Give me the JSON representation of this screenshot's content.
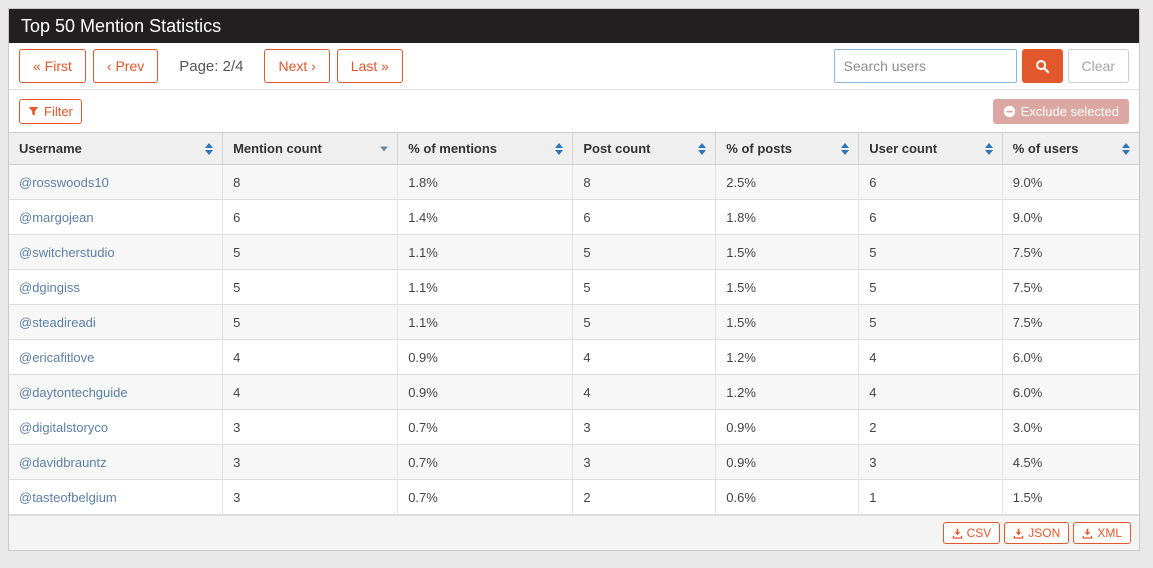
{
  "colors": {
    "accent": "#e2572b",
    "titlebar-bg": "#231f20",
    "link": "#5b7fa6",
    "sort": "#2d74b8",
    "sort-active": "#708ba3",
    "exclude-bg": "#dca7a2",
    "search-border": "#8ab6d9"
  },
  "header": {
    "title": "Top 50 Mention Statistics"
  },
  "pagination": {
    "first": "« First",
    "prev": "‹ Prev",
    "page_label": "Page: 2/4",
    "next": "Next ›",
    "last": "Last »"
  },
  "search": {
    "placeholder": "Search users",
    "value": "",
    "clear": "Clear"
  },
  "filter": {
    "label": "Filter"
  },
  "exclude": {
    "label": "Exclude selected"
  },
  "table": {
    "columns": [
      {
        "label": "Username",
        "sort": "both"
      },
      {
        "label": "Mention count",
        "sort": "desc"
      },
      {
        "label": "% of mentions",
        "sort": "both"
      },
      {
        "label": "Post count",
        "sort": "both"
      },
      {
        "label": "% of posts",
        "sort": "both"
      },
      {
        "label": "User count",
        "sort": "both"
      },
      {
        "label": "% of users",
        "sort": "both"
      }
    ],
    "rows": [
      [
        "@rosswoods10",
        "8",
        "1.8%",
        "8",
        "2.5%",
        "6",
        "9.0%"
      ],
      [
        "@margojean",
        "6",
        "1.4%",
        "6",
        "1.8%",
        "6",
        "9.0%"
      ],
      [
        "@switcherstudio",
        "5",
        "1.1%",
        "5",
        "1.5%",
        "5",
        "7.5%"
      ],
      [
        "@dgingiss",
        "5",
        "1.1%",
        "5",
        "1.5%",
        "5",
        "7.5%"
      ],
      [
        "@steadireadi",
        "5",
        "1.1%",
        "5",
        "1.5%",
        "5",
        "7.5%"
      ],
      [
        "@ericafitlove",
        "4",
        "0.9%",
        "4",
        "1.2%",
        "4",
        "6.0%"
      ],
      [
        "@daytontechguide",
        "4",
        "0.9%",
        "4",
        "1.2%",
        "4",
        "6.0%"
      ],
      [
        "@digitalstoryco",
        "3",
        "0.7%",
        "3",
        "0.9%",
        "2",
        "3.0%"
      ],
      [
        "@davidbrauntz",
        "3",
        "0.7%",
        "3",
        "0.9%",
        "3",
        "4.5%"
      ],
      [
        "@tasteofbelgium",
        "3",
        "0.7%",
        "2",
        "0.6%",
        "1",
        "1.5%"
      ]
    ]
  },
  "export": {
    "csv": "CSV",
    "json": "JSON",
    "xml": "XML"
  }
}
